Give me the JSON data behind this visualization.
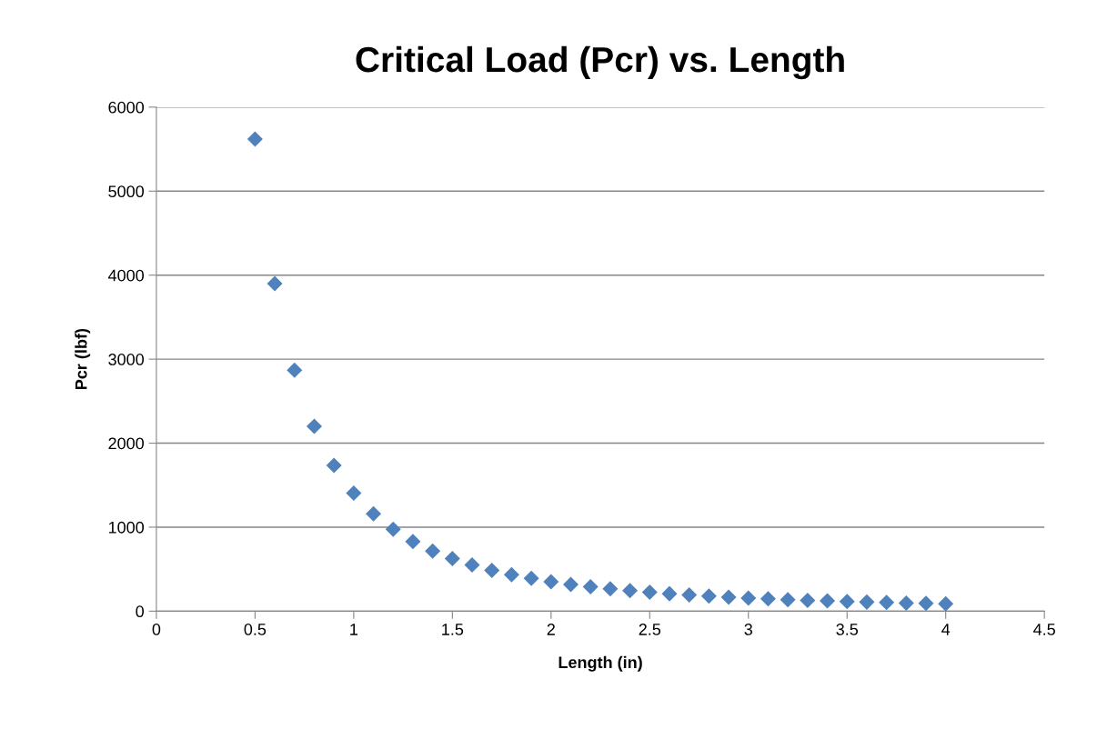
{
  "chart_data": {
    "type": "scatter",
    "title": "Critical Load (Pcr) vs. Length",
    "xlabel": "Length (in)",
    "ylabel": "Pcr (lbf)",
    "x": [
      0.5,
      0.6,
      0.7,
      0.8,
      0.9,
      1.0,
      1.1,
      1.2,
      1.3,
      1.4,
      1.5,
      1.6,
      1.7,
      1.8,
      1.9,
      2.0,
      2.1,
      2.2,
      2.3,
      2.4,
      2.5,
      2.6,
      2.7,
      2.8,
      2.9,
      3.0,
      3.1,
      3.2,
      3.3,
      3.4,
      3.5,
      3.6,
      3.7,
      3.8,
      3.9,
      4.0
    ],
    "series": [
      {
        "color": "#4f81bd",
        "values": [
          5620,
          3900,
          2870,
          2200,
          1735,
          1405,
          1160,
          975,
          830,
          715,
          625,
          550,
          485,
          435,
          390,
          350,
          318,
          290,
          265,
          245,
          225,
          208,
          193,
          180,
          167,
          156,
          146,
          137,
          129,
          122,
          115,
          108,
          103,
          97,
          92,
          88
        ]
      }
    ],
    "xlim": [
      0,
      4.5
    ],
    "xticks": [
      0,
      0.5,
      1,
      1.5,
      2,
      2.5,
      3,
      3.5,
      4,
      4.5
    ],
    "ylim": [
      0,
      6000
    ],
    "yticks": [
      0,
      1000,
      2000,
      3000,
      4000,
      5000,
      6000
    ],
    "grid": "y",
    "marker": "diamond",
    "legend": false
  }
}
